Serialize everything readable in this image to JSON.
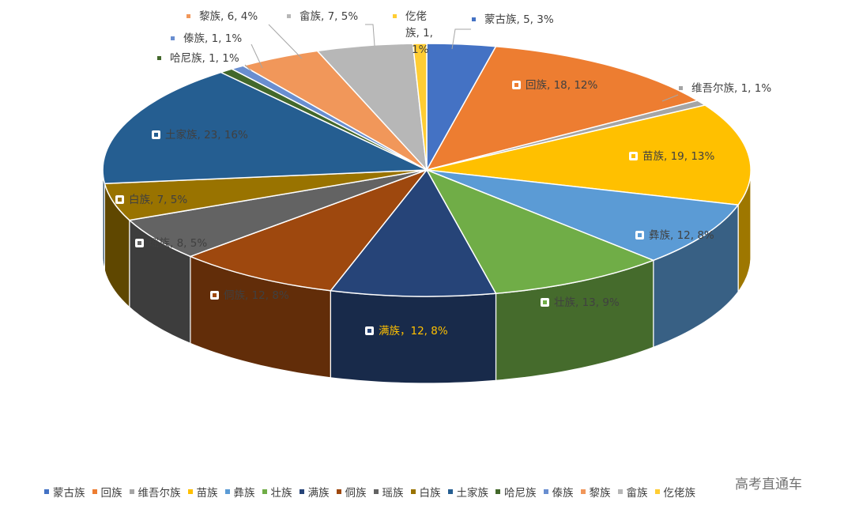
{
  "chart_data": {
    "type": "pie",
    "style": "3d-exploded-perspective",
    "slices": [
      {
        "label": "蒙古族",
        "value": 5,
        "percent": "3%",
        "color": "#4472C4",
        "text": "蒙古族, 5, 3%"
      },
      {
        "label": "回族",
        "value": 18,
        "percent": "12%",
        "color": "#ED7D31",
        "text": "回族, 18, 12%"
      },
      {
        "label": "维吾尔族",
        "value": 1,
        "percent": "1%",
        "color": "#A5A5A5",
        "text": "维吾尔族, 1, 1%"
      },
      {
        "label": "苗族",
        "value": 19,
        "percent": "13%",
        "color": "#FFC000",
        "text": "苗族, 19, 13%"
      },
      {
        "label": "彝族",
        "value": 12,
        "percent": "8%",
        "color": "#5B9BD5",
        "text": "彝族, 12, 8%"
      },
      {
        "label": "壮族",
        "value": 13,
        "percent": "9%",
        "color": "#70AD47",
        "text": "壮族, 13, 9%"
      },
      {
        "label": "满族",
        "value": 12,
        "percent": "8%",
        "color": "#264478",
        "text": "满族，12, 8%"
      },
      {
        "label": "侗族",
        "value": 12,
        "percent": "8%",
        "color": "#9E480E",
        "text": "侗族, 12, 8%"
      },
      {
        "label": "瑶族",
        "value": 8,
        "percent": "5%",
        "color": "#636363",
        "text": "瑶族, 8, 5%"
      },
      {
        "label": "白族",
        "value": 7,
        "percent": "5%",
        "color": "#997300",
        "text": "白族, 7, 5%"
      },
      {
        "label": "土家族",
        "value": 23,
        "percent": "16%",
        "color": "#255E91",
        "text": "土家族, 23, 16%"
      },
      {
        "label": "哈尼族",
        "value": 1,
        "percent": "1%",
        "color": "#43682B",
        "text": "哈尼族, 1, 1%"
      },
      {
        "label": "傣族",
        "value": 1,
        "percent": "1%",
        "color": "#698ED0",
        "text": "傣族, 1, 1%"
      },
      {
        "label": "黎族",
        "value": 6,
        "percent": "4%",
        "color": "#F1975A",
        "text": "黎族, 6, 4%"
      },
      {
        "label": "畲族",
        "value": 7,
        "percent": "5%",
        "color": "#B7B7B7",
        "text": "畲族, 7, 5%"
      },
      {
        "label": "仡佬族",
        "value": 1,
        "percent": "1%",
        "color": "#FFCD33",
        "text_lines": [
          "仡佬",
          "族, 1,",
          "1%"
        ]
      }
    ],
    "legend_position": "bottom"
  },
  "watermark": "高考直通车"
}
